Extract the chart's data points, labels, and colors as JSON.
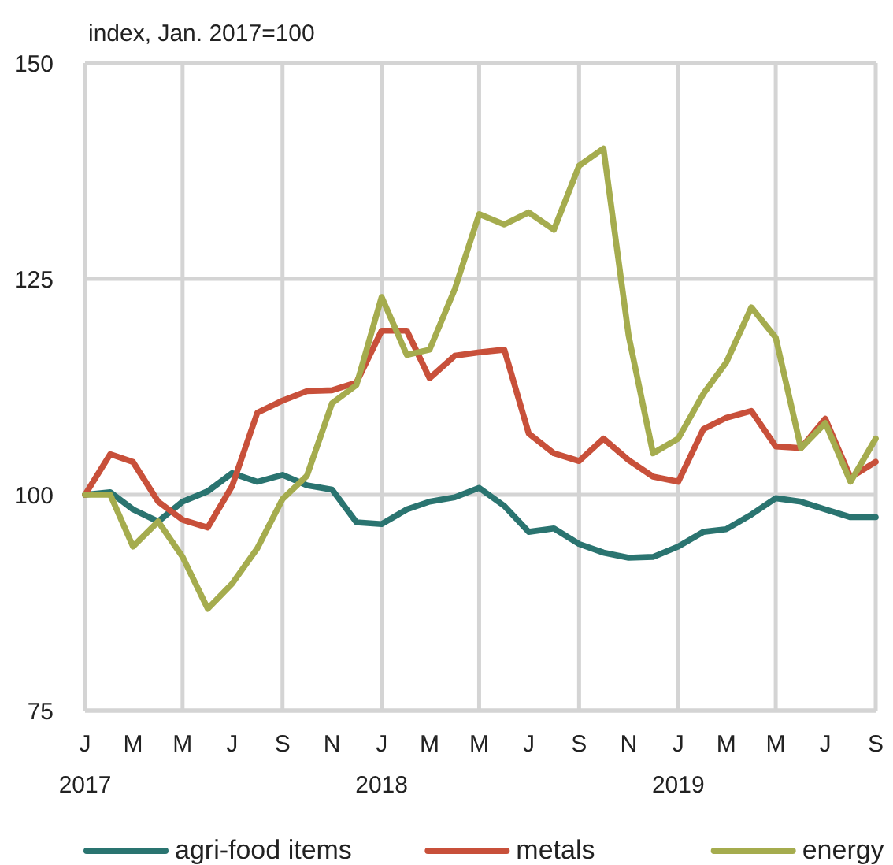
{
  "chart_data": {
    "type": "line",
    "ylabel": "index, Jan. 2017=100",
    "x": [
      "2017-01",
      "2017-02",
      "2017-03",
      "2017-04",
      "2017-05",
      "2017-06",
      "2017-07",
      "2017-08",
      "2017-09",
      "2017-10",
      "2017-11",
      "2017-12",
      "2018-01",
      "2018-02",
      "2018-03",
      "2018-04",
      "2018-05",
      "2018-06",
      "2018-07",
      "2018-08",
      "2018-09",
      "2018-10",
      "2018-11",
      "2018-12",
      "2019-01",
      "2019-02",
      "2019-03",
      "2019-04",
      "2019-05",
      "2019-06",
      "2019-07",
      "2019-08",
      "2019-09"
    ],
    "series": [
      {
        "name": "agri-food items",
        "color": "#2a7470",
        "values": [
          100,
          100.3,
          98.3,
          96.9,
          99.2,
          100.4,
          102.5,
          101.5,
          102.3,
          101.1,
          100.6,
          96.8,
          96.6,
          98.3,
          99.2,
          99.7,
          100.8,
          98.7,
          95.7,
          96.1,
          94.3,
          93.3,
          92.7,
          92.8,
          94.0,
          95.7,
          96.0,
          97.7,
          99.6,
          99.2,
          98.3,
          97.4,
          97.4
        ]
      },
      {
        "name": "metals",
        "color": "#c8503a",
        "values": [
          100,
          104.7,
          103.8,
          99.2,
          97.1,
          96.2,
          101.0,
          109.5,
          110.9,
          112.0,
          112.1,
          113.0,
          119.0,
          119.0,
          113.5,
          116.1,
          116.5,
          116.8,
          107.1,
          104.8,
          103.9,
          106.5,
          104.0,
          102.1,
          101.5,
          107.6,
          108.9,
          109.7,
          105.6,
          105.4,
          108.8,
          102.0,
          103.8
        ]
      },
      {
        "name": "energy",
        "color": "#a5ac4e",
        "values": [
          100,
          100,
          94.0,
          96.9,
          92.8,
          86.8,
          89.7,
          93.8,
          99.5,
          102.2,
          110.6,
          112.7,
          122.9,
          116.2,
          116.8,
          123.8,
          132.5,
          131.3,
          132.7,
          130.7,
          138.1,
          140.1,
          118.4,
          104.8,
          106.5,
          111.7,
          115.3,
          121.7,
          118.2,
          105.4,
          108.3,
          101.5,
          106.5
        ]
      }
    ],
    "xlim": [
      "2017-01",
      "2019-09"
    ],
    "xticks": [
      {
        "value": "2017-01",
        "label": "J\n2017"
      },
      {
        "value": "2017-03",
        "label": "M"
      },
      {
        "value": "2017-05",
        "label": "M"
      },
      {
        "value": "2017-07",
        "label": "J"
      },
      {
        "value": "2017-09",
        "label": "S"
      },
      {
        "value": "2017-11",
        "label": "N"
      },
      {
        "value": "2018-01",
        "label": "J\n2018"
      },
      {
        "value": "2018-03",
        "label": "M"
      },
      {
        "value": "2018-05",
        "label": "M"
      },
      {
        "value": "2018-07",
        "label": "J"
      },
      {
        "value": "2018-09",
        "label": "S"
      },
      {
        "value": "2018-11",
        "label": "N"
      },
      {
        "value": "2019-01",
        "label": "J\n2019"
      },
      {
        "value": "2019-03",
        "label": "M"
      },
      {
        "value": "2019-05",
        "label": "M"
      },
      {
        "value": "2019-07",
        "label": "J"
      },
      {
        "value": "2019-09",
        "label": "S"
      }
    ],
    "ylim": [
      75,
      150
    ],
    "yticks": [
      75,
      100,
      125,
      150
    ],
    "grid": true,
    "legend": "bottom",
    "marker": "none",
    "line_style": "solid"
  }
}
